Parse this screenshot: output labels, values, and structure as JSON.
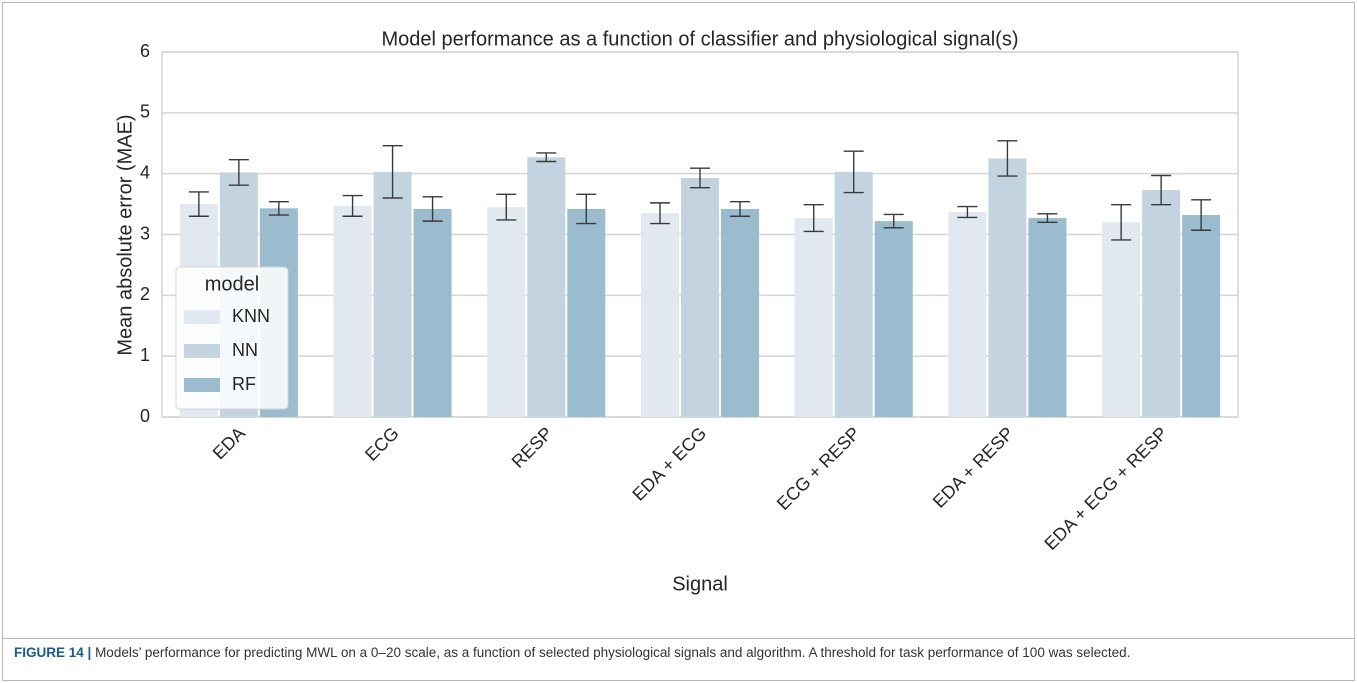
{
  "chart_data": {
    "type": "bar",
    "title": "Model performance as a function of classifier and physiological signal(s)",
    "x_label": "Signal",
    "y_label": "Mean absolute error (MAE)",
    "categories": [
      "EDA",
      "ECG",
      "RESP",
      "EDA + ECG",
      "ECG + RESP",
      "EDA + RESP",
      "EDA + ECG + RESP"
    ],
    "series": [
      {
        "name": "KNN",
        "color": "#e1e8f0",
        "values": [
          3.5,
          3.47,
          3.45,
          3.35,
          3.27,
          3.37,
          3.2
        ],
        "errors": [
          0.2,
          0.17,
          0.21,
          0.17,
          0.22,
          0.09,
          0.29
        ]
      },
      {
        "name": "NN",
        "color": "#c3d4e0",
        "values": [
          4.02,
          4.03,
          4.27,
          3.93,
          4.03,
          4.25,
          3.73
        ],
        "errors": [
          0.21,
          0.43,
          0.07,
          0.16,
          0.34,
          0.29,
          0.24
        ]
      },
      {
        "name": "RF",
        "color": "#9bbbcf",
        "values": [
          3.43,
          3.42,
          3.42,
          3.42,
          3.22,
          3.27,
          3.32
        ],
        "errors": [
          0.11,
          0.2,
          0.24,
          0.12,
          0.11,
          0.07,
          0.25
        ]
      }
    ],
    "legend_title": "model",
    "legend": "lower left",
    "ylim": [
      0,
      6
    ],
    "yticks": [
      0,
      1,
      2,
      3,
      4,
      5,
      6
    ],
    "grid": true
  },
  "caption": {
    "label": "FIGURE 14 |",
    "text": "Models’ performance for predicting MWL on a 0–20 scale, as a function of selected physiological signals and algorithm. A threshold for task performance of 100 was selected."
  }
}
